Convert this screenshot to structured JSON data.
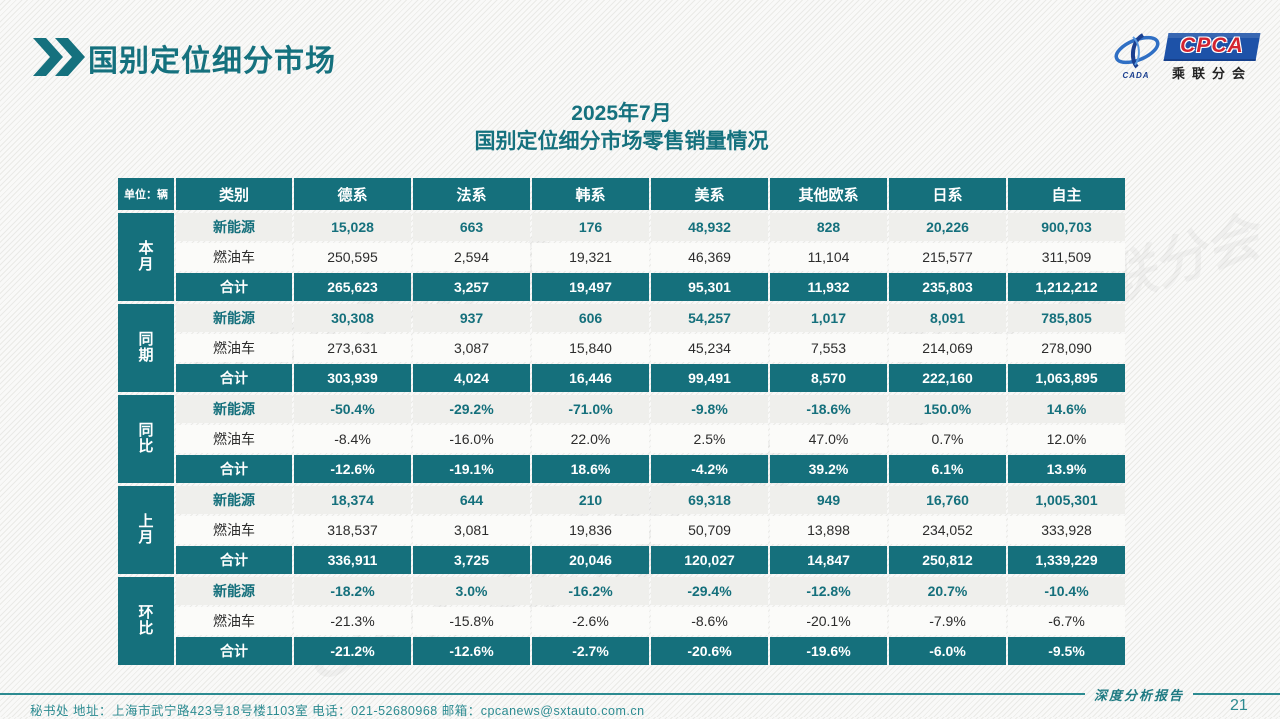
{
  "page": {
    "title": "国别定位细分市场",
    "subtitle_line1": "2025年7月",
    "subtitle_line2": "国别定位细分市场零售销量情况",
    "footer_text": "秘书处   地址：上海市武宁路423号18号楼1103室  电话：021-52680968   邮箱：cpcanews@sxtauto.com.cn",
    "report_label": "深度分析报告",
    "page_number": "21",
    "watermark": "GPCA 乘联分会"
  },
  "logo": {
    "cada": "CADA",
    "cpca": "CPCA",
    "subtitle": "乘联分会"
  },
  "colors": {
    "teal": "#15707c",
    "title_teal": "#15717e",
    "footer_teal": "#2c8b91",
    "logo_blue": "#1d52a8",
    "logo_red": "#d42430"
  },
  "table": {
    "unit_label": "单位：辆",
    "category_header": "类别",
    "columns": [
      "德系",
      "法系",
      "韩系",
      "美系",
      "其他欧系",
      "日系",
      "自主"
    ],
    "groups": [
      {
        "label": "本月",
        "rows": [
          {
            "type": "新能源",
            "values": [
              "15,028",
              "663",
              "176",
              "48,932",
              "828",
              "20,226",
              "900,703"
            ]
          },
          {
            "type": "燃油车",
            "values": [
              "250,595",
              "2,594",
              "19,321",
              "46,369",
              "11,104",
              "215,577",
              "311,509"
            ]
          },
          {
            "type": "合计",
            "values": [
              "265,623",
              "3,257",
              "19,497",
              "95,301",
              "11,932",
              "235,803",
              "1,212,212"
            ]
          }
        ]
      },
      {
        "label": "同期",
        "rows": [
          {
            "type": "新能源",
            "values": [
              "30,308",
              "937",
              "606",
              "54,257",
              "1,017",
              "8,091",
              "785,805"
            ]
          },
          {
            "type": "燃油车",
            "values": [
              "273,631",
              "3,087",
              "15,840",
              "45,234",
              "7,553",
              "214,069",
              "278,090"
            ]
          },
          {
            "type": "合计",
            "values": [
              "303,939",
              "4,024",
              "16,446",
              "99,491",
              "8,570",
              "222,160",
              "1,063,895"
            ]
          }
        ]
      },
      {
        "label": "同比",
        "rows": [
          {
            "type": "新能源",
            "values": [
              "-50.4%",
              "-29.2%",
              "-71.0%",
              "-9.8%",
              "-18.6%",
              "150.0%",
              "14.6%"
            ]
          },
          {
            "type": "燃油车",
            "values": [
              "-8.4%",
              "-16.0%",
              "22.0%",
              "2.5%",
              "47.0%",
              "0.7%",
              "12.0%"
            ]
          },
          {
            "type": "合计",
            "values": [
              "-12.6%",
              "-19.1%",
              "18.6%",
              "-4.2%",
              "39.2%",
              "6.1%",
              "13.9%"
            ]
          }
        ]
      },
      {
        "label": "上月",
        "rows": [
          {
            "type": "新能源",
            "values": [
              "18,374",
              "644",
              "210",
              "69,318",
              "949",
              "16,760",
              "1,005,301"
            ]
          },
          {
            "type": "燃油车",
            "values": [
              "318,537",
              "3,081",
              "19,836",
              "50,709",
              "13,898",
              "234,052",
              "333,928"
            ]
          },
          {
            "type": "合计",
            "values": [
              "336,911",
              "3,725",
              "20,046",
              "120,027",
              "14,847",
              "250,812",
              "1,339,229"
            ]
          }
        ]
      },
      {
        "label": "环比",
        "rows": [
          {
            "type": "新能源",
            "values": [
              "-18.2%",
              "3.0%",
              "-16.2%",
              "-29.4%",
              "-12.8%",
              "20.7%",
              "-10.4%"
            ]
          },
          {
            "type": "燃油车",
            "values": [
              "-21.3%",
              "-15.8%",
              "-2.6%",
              "-8.6%",
              "-20.1%",
              "-7.9%",
              "-6.7%"
            ]
          },
          {
            "type": "合计",
            "values": [
              "-21.2%",
              "-12.6%",
              "-2.7%",
              "-20.6%",
              "-19.6%",
              "-6.0%",
              "-9.5%"
            ]
          }
        ]
      }
    ]
  }
}
